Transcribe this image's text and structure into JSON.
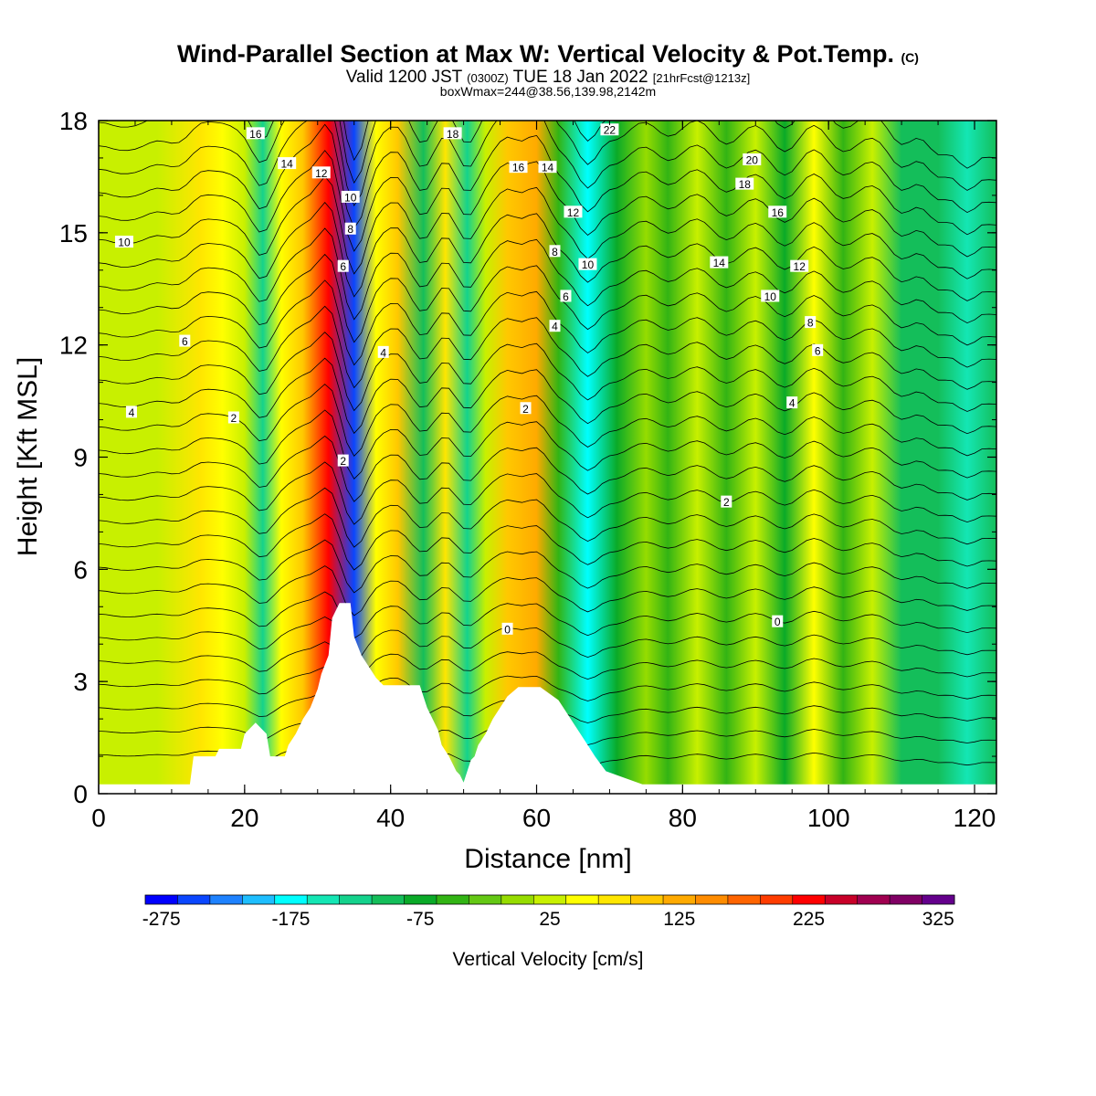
{
  "title": {
    "main": "Wind-Parallel Section at Max W: Vertical Velocity & Pot.Temp.",
    "copyright": "(C)",
    "valid_prefix": "Valid 1200 JST",
    "utc": "(0300Z)",
    "valid_date": "TUE 18 Jan 2022",
    "forecast": "[21hrFcst@1213z]",
    "boxwmax": "boxWmax=244@38.56,139.98,2142m"
  },
  "chart_data": {
    "type": "heatmap",
    "xlabel": "Distance [nm]",
    "ylabel": "Height [Kft MSL]",
    "xlim": [
      0,
      123
    ],
    "ylim": [
      0,
      18
    ],
    "x_ticks": [
      "0",
      "20",
      "40",
      "60",
      "80",
      "100",
      "120"
    ],
    "y_ticks": [
      "0",
      "3",
      "6",
      "9",
      "12",
      "15",
      "18"
    ],
    "colorbar": {
      "title": "Vertical Velocity [cm/s]",
      "min": -275,
      "max": 350,
      "step": 25,
      "tick_labels": [
        "-275",
        "-175",
        "-75",
        "25",
        "125",
        "225",
        "325"
      ],
      "colors": [
        "#0000ff",
        "#0a46ff",
        "#1e82ff",
        "#1ebeff",
        "#00ffff",
        "#14e6b4",
        "#14d28c",
        "#14be5a",
        "#0aaa28",
        "#32b414",
        "#64c814",
        "#96dc00",
        "#c8f000",
        "#ffff00",
        "#ffe600",
        "#ffc800",
        "#ffaa00",
        "#ff8c00",
        "#ff6400",
        "#ff3c00",
        "#ff0000",
        "#c80028",
        "#a00050",
        "#800064",
        "#64008c"
      ]
    },
    "vertical_velocity_columns": [
      {
        "x": 0,
        "w": 30
      },
      {
        "x": 8,
        "w": 30
      },
      {
        "x": 14,
        "w": 75
      },
      {
        "x": 17,
        "w": 60
      },
      {
        "x": 20,
        "w": 35
      },
      {
        "x": 22.5,
        "w": -120
      },
      {
        "x": 25,
        "w": 60
      },
      {
        "x": 28,
        "w": 120
      },
      {
        "x": 31.5,
        "w": 244
      },
      {
        "x": 35,
        "w": -230
      },
      {
        "x": 38,
        "w": 60
      },
      {
        "x": 41,
        "w": 100
      },
      {
        "x": 44.5,
        "w": -90
      },
      {
        "x": 47.5,
        "w": 80
      },
      {
        "x": 50.5,
        "w": -110
      },
      {
        "x": 53,
        "w": 40
      },
      {
        "x": 56,
        "w": 120
      },
      {
        "x": 60,
        "w": 130
      },
      {
        "x": 63,
        "w": -40
      },
      {
        "x": 67,
        "w": -170
      },
      {
        "x": 71,
        "w": -60
      },
      {
        "x": 75,
        "w": 20
      },
      {
        "x": 78,
        "w": -40
      },
      {
        "x": 82,
        "w": 40
      },
      {
        "x": 86,
        "w": -50
      },
      {
        "x": 90,
        "w": 40
      },
      {
        "x": 94,
        "w": -60
      },
      {
        "x": 98,
        "w": 60
      },
      {
        "x": 102,
        "w": -40
      },
      {
        "x": 106,
        "w": 30
      },
      {
        "x": 110,
        "w": -80
      },
      {
        "x": 115,
        "w": -100
      },
      {
        "x": 119,
        "w": -140
      },
      {
        "x": 123,
        "w": -100
      }
    ],
    "terrain": {
      "x": [
        0,
        12.5,
        13,
        16,
        16.5,
        19.5,
        20,
        21.5,
        23,
        23.5,
        25.5,
        26,
        27,
        28,
        29,
        30,
        30.5,
        31.5,
        32,
        33,
        34.5,
        35,
        36,
        37,
        38,
        39,
        40,
        44,
        44.5,
        45,
        46.5,
        47,
        48,
        48.5,
        49,
        49.5,
        50,
        50.5,
        51,
        51.5,
        52,
        53,
        54,
        55,
        56,
        57.5,
        60.5,
        63,
        64,
        65,
        66,
        67,
        68,
        69.5,
        74.5,
        123
      ],
      "height_kft": [
        0.25,
        0.25,
        1.0,
        1.0,
        1.2,
        1.2,
        1.6,
        1.9,
        1.6,
        1.0,
        1.0,
        1.3,
        1.6,
        2.0,
        2.3,
        2.8,
        3.2,
        3.7,
        4.7,
        5.1,
        5.1,
        4.2,
        3.7,
        3.4,
        3.1,
        2.9,
        2.9,
        2.9,
        2.6,
        2.3,
        1.7,
        1.3,
        1.0,
        0.8,
        0.6,
        0.5,
        0.3,
        0.6,
        0.9,
        1.0,
        1.3,
        1.6,
        2.0,
        2.3,
        2.6,
        2.85,
        2.85,
        2.5,
        2.2,
        1.9,
        1.6,
        1.3,
        1.0,
        0.6,
        0.25,
        0.25
      ]
    },
    "theta_contour_labels": [
      "0",
      "2",
      "4",
      "6",
      "8",
      "10",
      "12",
      "14",
      "16",
      "18",
      "20",
      "22"
    ],
    "contour_labels": [
      {
        "text": "16",
        "x": 21.5,
        "y": 17.65
      },
      {
        "text": "14",
        "x": 25.8,
        "y": 16.85
      },
      {
        "text": "12",
        "x": 30.5,
        "y": 16.6
      },
      {
        "text": "10",
        "x": 34.5,
        "y": 15.95
      },
      {
        "text": "8",
        "x": 34.5,
        "y": 15.1
      },
      {
        "text": "6",
        "x": 33.5,
        "y": 14.1
      },
      {
        "text": "18",
        "x": 48.5,
        "y": 17.65
      },
      {
        "text": "16",
        "x": 57.5,
        "y": 16.75
      },
      {
        "text": "14",
        "x": 61.5,
        "y": 16.75
      },
      {
        "text": "22",
        "x": 70,
        "y": 17.75
      },
      {
        "text": "20",
        "x": 89.5,
        "y": 16.95
      },
      {
        "text": "18",
        "x": 88.5,
        "y": 16.3
      },
      {
        "text": "16",
        "x": 93,
        "y": 15.55
      },
      {
        "text": "12",
        "x": 65,
        "y": 15.55
      },
      {
        "text": "10",
        "x": 67,
        "y": 14.15
      },
      {
        "text": "8",
        "x": 62.5,
        "y": 14.5
      },
      {
        "text": "6",
        "x": 64,
        "y": 13.3
      },
      {
        "text": "4",
        "x": 62.5,
        "y": 12.5
      },
      {
        "text": "14",
        "x": 85,
        "y": 14.2
      },
      {
        "text": "12",
        "x": 96,
        "y": 14.1
      },
      {
        "text": "10",
        "x": 92,
        "y": 13.3
      },
      {
        "text": "8",
        "x": 97.5,
        "y": 12.6
      },
      {
        "text": "6",
        "x": 98.5,
        "y": 11.85
      },
      {
        "text": "4",
        "x": 39,
        "y": 11.8
      },
      {
        "text": "10",
        "x": 3.5,
        "y": 14.75
      },
      {
        "text": "6",
        "x": 11.8,
        "y": 12.1
      },
      {
        "text": "4",
        "x": 4.5,
        "y": 10.2
      },
      {
        "text": "2",
        "x": 18.5,
        "y": 10.05
      },
      {
        "text": "2",
        "x": 33.5,
        "y": 8.9
      },
      {
        "text": "2",
        "x": 58.5,
        "y": 10.3
      },
      {
        "text": "4",
        "x": 95,
        "y": 10.45
      },
      {
        "text": "2",
        "x": 86,
        "y": 7.8
      },
      {
        "text": "0",
        "x": 56,
        "y": 4.4
      },
      {
        "text": "0",
        "x": 93,
        "y": 4.6
      }
    ]
  }
}
